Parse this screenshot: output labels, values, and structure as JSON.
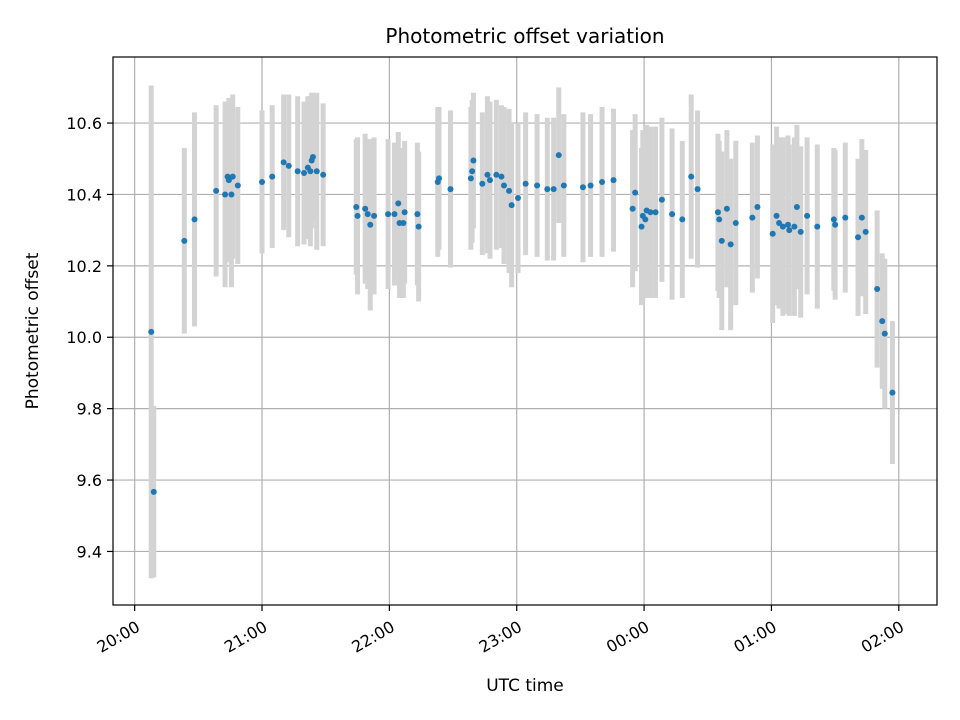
{
  "chart_data": {
    "type": "scatter",
    "title": "Photometric offset variation",
    "xlabel": "UTC time",
    "ylabel": "Photometric offset",
    "x_unit": "hours since 20:00 UTC",
    "xlim": [
      -0.17,
      6.3
    ],
    "ylim": [
      9.25,
      10.785
    ],
    "x_ticks": [
      0,
      1,
      2,
      3,
      4,
      5,
      6
    ],
    "x_tick_labels": [
      "20:00",
      "21:00",
      "22:00",
      "23:00",
      "00:00",
      "01:00",
      "02:00"
    ],
    "y_ticks": [
      9.4,
      9.6,
      9.8,
      10.0,
      10.2,
      10.4,
      10.6
    ],
    "y_tick_labels": [
      "9.4",
      "9.6",
      "9.8",
      "10.0",
      "10.2",
      "10.4",
      "10.6"
    ],
    "grid": true,
    "point_color": "#1f77b4",
    "errorbar_color": "#d3d3d3",
    "points": [
      [
        0.13,
        10.015,
        0.69
      ],
      [
        0.15,
        9.567,
        0.24
      ],
      [
        0.39,
        10.27,
        0.26
      ],
      [
        0.47,
        10.33,
        0.3
      ],
      [
        0.64,
        10.41,
        0.24
      ],
      [
        0.71,
        10.4,
        0.26
      ],
      [
        0.73,
        10.45,
        0.21
      ],
      [
        0.74,
        10.44,
        0.23
      ],
      [
        0.76,
        10.4,
        0.26
      ],
      [
        0.77,
        10.45,
        0.23
      ],
      [
        0.81,
        10.425,
        0.22
      ],
      [
        1.0,
        10.435,
        0.2
      ],
      [
        1.08,
        10.45,
        0.2
      ],
      [
        1.17,
        10.49,
        0.19
      ],
      [
        1.21,
        10.48,
        0.2
      ],
      [
        1.28,
        10.465,
        0.21
      ],
      [
        1.33,
        10.46,
        0.2
      ],
      [
        1.36,
        10.475,
        0.2
      ],
      [
        1.38,
        10.465,
        0.21
      ],
      [
        1.39,
        10.495,
        0.19
      ],
      [
        1.4,
        10.505,
        0.18
      ],
      [
        1.43,
        10.465,
        0.22
      ],
      [
        1.48,
        10.455,
        0.2
      ],
      [
        1.74,
        10.365,
        0.19
      ],
      [
        1.75,
        10.34,
        0.22
      ],
      [
        1.81,
        10.36,
        0.21
      ],
      [
        1.83,
        10.345,
        0.21
      ],
      [
        1.85,
        10.315,
        0.24
      ],
      [
        1.88,
        10.34,
        0.22
      ],
      [
        1.99,
        10.345,
        0.21
      ],
      [
        2.04,
        10.345,
        0.2
      ],
      [
        2.07,
        10.375,
        0.2
      ],
      [
        2.08,
        10.32,
        0.21
      ],
      [
        2.11,
        10.32,
        0.21
      ],
      [
        2.12,
        10.35,
        0.2
      ],
      [
        2.22,
        10.345,
        0.2
      ],
      [
        2.23,
        10.31,
        0.21
      ],
      [
        2.38,
        10.435,
        0.21
      ],
      [
        2.39,
        10.445,
        0.2
      ],
      [
        2.48,
        10.415,
        0.22
      ],
      [
        2.64,
        10.445,
        0.2
      ],
      [
        2.65,
        10.465,
        0.2
      ],
      [
        2.66,
        10.495,
        0.19
      ],
      [
        2.73,
        10.43,
        0.2
      ],
      [
        2.77,
        10.455,
        0.22
      ],
      [
        2.79,
        10.44,
        0.22
      ],
      [
        2.84,
        10.455,
        0.21
      ],
      [
        2.88,
        10.45,
        0.2
      ],
      [
        2.9,
        10.425,
        0.22
      ],
      [
        2.94,
        10.41,
        0.23
      ],
      [
        2.96,
        10.37,
        0.23
      ],
      [
        3.01,
        10.39,
        0.21
      ],
      [
        3.07,
        10.43,
        0.2
      ],
      [
        3.16,
        10.425,
        0.2
      ],
      [
        3.24,
        10.415,
        0.2
      ],
      [
        3.29,
        10.415,
        0.2
      ],
      [
        3.33,
        10.51,
        0.19
      ],
      [
        3.37,
        10.425,
        0.2
      ],
      [
        3.52,
        10.42,
        0.21
      ],
      [
        3.58,
        10.425,
        0.2
      ],
      [
        3.67,
        10.435,
        0.21
      ],
      [
        3.76,
        10.44,
        0.2
      ],
      [
        3.91,
        10.36,
        0.22
      ],
      [
        3.93,
        10.405,
        0.22
      ],
      [
        3.98,
        10.31,
        0.22
      ],
      [
        3.99,
        10.34,
        0.24
      ],
      [
        4.01,
        10.33,
        0.22
      ],
      [
        4.02,
        10.355,
        0.24
      ],
      [
        4.05,
        10.35,
        0.24
      ],
      [
        4.09,
        10.35,
        0.24
      ],
      [
        4.14,
        10.385,
        0.23
      ],
      [
        4.22,
        10.345,
        0.24
      ],
      [
        4.3,
        10.33,
        0.22
      ],
      [
        4.37,
        10.45,
        0.23
      ],
      [
        4.42,
        10.415,
        0.22
      ],
      [
        4.58,
        10.35,
        0.22
      ],
      [
        4.59,
        10.33,
        0.22
      ],
      [
        4.61,
        10.27,
        0.25
      ],
      [
        4.65,
        10.36,
        0.22
      ],
      [
        4.68,
        10.26,
        0.24
      ],
      [
        4.72,
        10.32,
        0.23
      ],
      [
        4.85,
        10.335,
        0.21
      ],
      [
        4.89,
        10.365,
        0.2
      ],
      [
        5.01,
        10.29,
        0.25
      ],
      [
        5.04,
        10.34,
        0.25
      ],
      [
        5.06,
        10.32,
        0.24
      ],
      [
        5.09,
        10.31,
        0.25
      ],
      [
        5.13,
        10.315,
        0.25
      ],
      [
        5.14,
        10.3,
        0.24
      ],
      [
        5.18,
        10.31,
        0.25
      ],
      [
        5.2,
        10.365,
        0.23
      ],
      [
        5.23,
        10.295,
        0.24
      ],
      [
        5.28,
        10.34,
        0.22
      ],
      [
        5.36,
        10.31,
        0.23
      ],
      [
        5.49,
        10.33,
        0.2
      ],
      [
        5.5,
        10.315,
        0.21
      ],
      [
        5.58,
        10.335,
        0.21
      ],
      [
        5.68,
        10.28,
        0.22
      ],
      [
        5.71,
        10.335,
        0.22
      ],
      [
        5.74,
        10.295,
        0.23
      ],
      [
        5.83,
        10.135,
        0.22
      ],
      [
        5.87,
        10.045,
        0.19
      ],
      [
        5.89,
        10.01,
        0.21
      ],
      [
        5.95,
        9.845,
        0.2
      ]
    ]
  }
}
